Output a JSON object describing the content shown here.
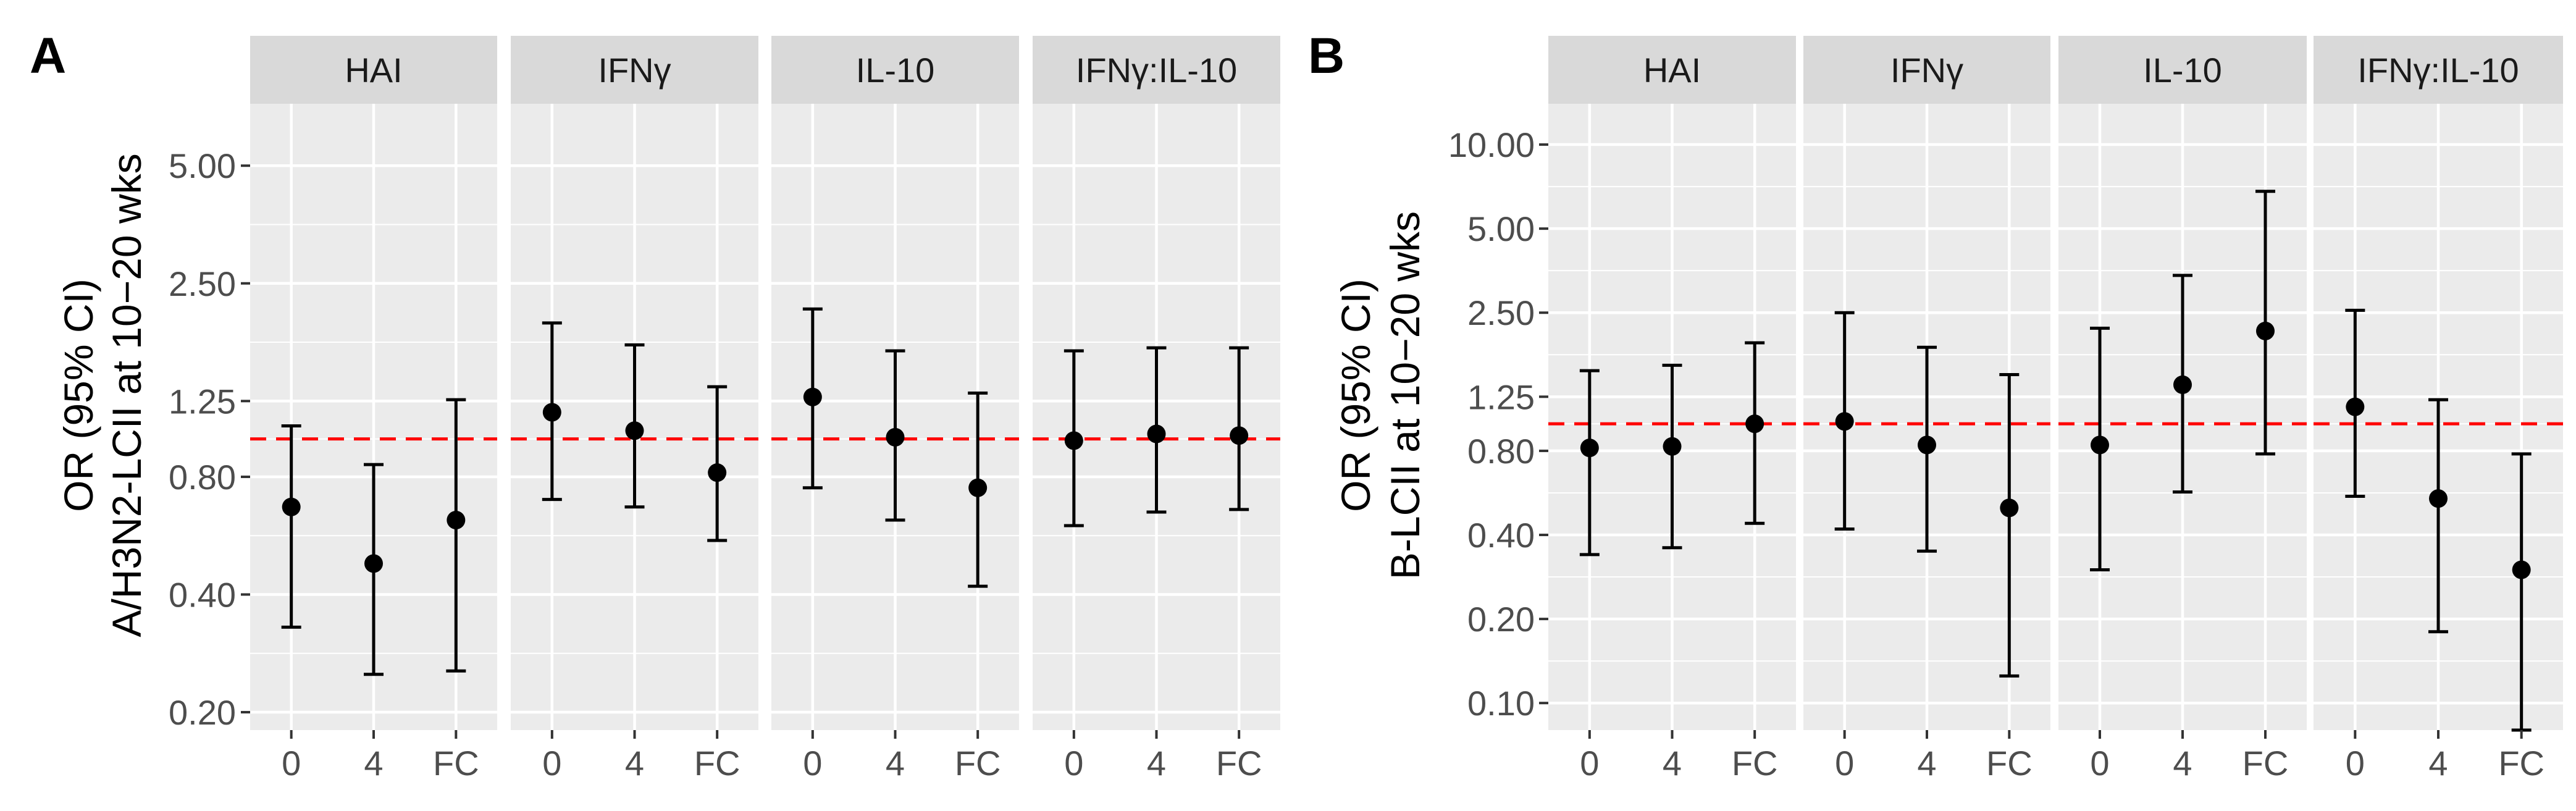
{
  "chart_data": [
    {
      "type": "errorbar",
      "panel_label": "A",
      "ylabel": [
        "OR (95% CI)",
        "A/H3N2-LCII at 10−20 wks"
      ],
      "y_scale": "log",
      "ylim": [
        0.18,
        7.2
      ],
      "y_ticks": [
        0.2,
        0.4,
        0.8,
        1.25,
        2.5,
        5.0
      ],
      "y_tick_labels": [
        "0.20",
        "0.40",
        "0.80",
        "1.25",
        "2.50",
        "5.00"
      ],
      "reference_line": 1.0,
      "categories": [
        "0",
        "4",
        "FC"
      ],
      "facets": [
        {
          "name": "HAI",
          "points": [
            {
              "x": "0",
              "or": 0.67,
              "lower": 0.33,
              "upper": 1.08
            },
            {
              "x": "4",
              "or": 0.48,
              "lower": 0.25,
              "upper": 0.86
            },
            {
              "x": "FC",
              "or": 0.62,
              "lower": 0.255,
              "upper": 1.26
            }
          ]
        },
        {
          "name": "IFNγ",
          "points": [
            {
              "x": "0",
              "or": 1.17,
              "lower": 0.7,
              "upper": 1.98
            },
            {
              "x": "4",
              "or": 1.05,
              "lower": 0.67,
              "upper": 1.74
            },
            {
              "x": "FC",
              "or": 0.82,
              "lower": 0.55,
              "upper": 1.36
            }
          ]
        },
        {
          "name": "IL-10",
          "points": [
            {
              "x": "0",
              "or": 1.28,
              "lower": 0.75,
              "upper": 2.15
            },
            {
              "x": "4",
              "or": 1.01,
              "lower": 0.62,
              "upper": 1.68
            },
            {
              "x": "FC",
              "or": 0.75,
              "lower": 0.42,
              "upper": 1.31
            }
          ]
        },
        {
          "name": "IFNγ:IL-10",
          "points": [
            {
              "x": "0",
              "or": 0.99,
              "lower": 0.6,
              "upper": 1.68
            },
            {
              "x": "4",
              "or": 1.03,
              "lower": 0.65,
              "upper": 1.71
            },
            {
              "x": "FC",
              "or": 1.02,
              "lower": 0.66,
              "upper": 1.71
            }
          ]
        }
      ]
    },
    {
      "type": "errorbar",
      "panel_label": "B",
      "ylabel": [
        "OR (95% CI)",
        "B-LCII at 10−20 wks"
      ],
      "y_scale": "log",
      "ylim": [
        0.08,
        14
      ],
      "y_ticks": [
        0.1,
        0.2,
        0.4,
        0.8,
        1.25,
        2.5,
        5.0,
        10.0
      ],
      "y_tick_labels": [
        "0.10",
        "0.20",
        "0.40",
        "0.80",
        "1.25",
        "2.50",
        "5.00",
        "10.00"
      ],
      "reference_line": 1.0,
      "categories": [
        "0",
        "4",
        "FC"
      ],
      "facets": [
        {
          "name": "HAI",
          "points": [
            {
              "x": "0",
              "or": 0.82,
              "lower": 0.34,
              "upper": 1.55
            },
            {
              "x": "4",
              "or": 0.83,
              "lower": 0.36,
              "upper": 1.62
            },
            {
              "x": "FC",
              "or": 1.0,
              "lower": 0.44,
              "upper": 1.95
            }
          ]
        },
        {
          "name": "IFNγ",
          "points": [
            {
              "x": "0",
              "or": 1.02,
              "lower": 0.42,
              "upper": 2.5
            },
            {
              "x": "4",
              "or": 0.84,
              "lower": 0.35,
              "upper": 1.88
            },
            {
              "x": "FC",
              "or": 0.5,
              "lower": 0.125,
              "upper": 1.5
            }
          ]
        },
        {
          "name": "IL-10",
          "points": [
            {
              "x": "0",
              "or": 0.84,
              "lower": 0.3,
              "upper": 2.2
            },
            {
              "x": "4",
              "or": 1.38,
              "lower": 0.57,
              "upper": 3.4
            },
            {
              "x": "FC",
              "or": 2.15,
              "lower": 0.78,
              "upper": 6.8
            }
          ]
        },
        {
          "name": "IFNγ:IL-10",
          "points": [
            {
              "x": "0",
              "or": 1.15,
              "lower": 0.55,
              "upper": 2.55
            },
            {
              "x": "4",
              "or": 0.54,
              "lower": 0.18,
              "upper": 1.22
            },
            {
              "x": "FC",
              "or": 0.3,
              "lower": 0.075,
              "upper": 0.78
            }
          ]
        }
      ]
    }
  ]
}
